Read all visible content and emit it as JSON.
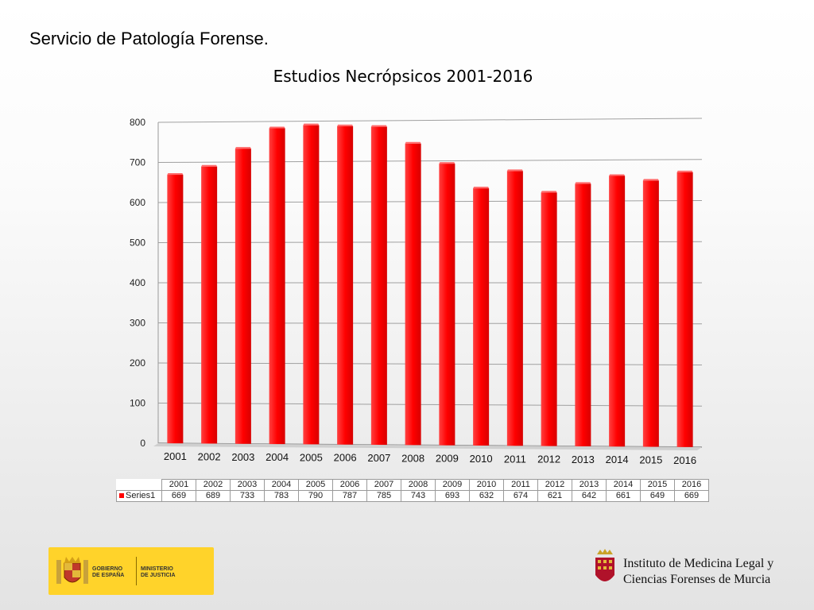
{
  "slide": {
    "title": "Servicio de Patología Forense."
  },
  "chart_data": {
    "type": "bar",
    "title": "Estudios Necrópsicos 2001-2016",
    "categories": [
      "2001",
      "2002",
      "2003",
      "2004",
      "2005",
      "2006",
      "2007",
      "2008",
      "2009",
      "2010",
      "2011",
      "2012",
      "2013",
      "2014",
      "2015",
      "2016"
    ],
    "series": [
      {
        "name": "Series1",
        "values": [
          669,
          689,
          733,
          783,
          790,
          787,
          785,
          743,
          693,
          632,
          674,
          621,
          642,
          661,
          649,
          669
        ],
        "color": "#ff0000"
      }
    ],
    "ylim": [
      0,
      800
    ],
    "yticks": [
      0,
      100,
      200,
      300,
      400,
      500,
      600,
      700,
      800
    ],
    "grid": true,
    "data_table": true
  },
  "footer": {
    "gov_logo": {
      "line1": "GOBIERNO",
      "line2": "DE ESPAÑA",
      "line3": "MINISTERIO",
      "line4": "DE JUSTICIA",
      "bg_color": "#ffd32a"
    },
    "institute": {
      "line1": "Instituto de Medicina Legal y",
      "line2": "Ciencias Forenses de Murcia",
      "crest_color": "#b0122a"
    }
  }
}
